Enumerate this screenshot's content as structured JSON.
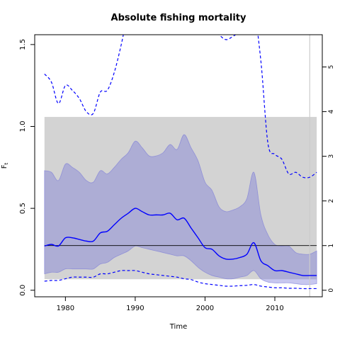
{
  "chart_data": {
    "type": "line",
    "title": "Absolute fishing mortality",
    "xlabel": "Time",
    "ylabel": "F",
    "ylabel_subscript": "t",
    "xlim": [
      1975.6,
      2016.8
    ],
    "ylim": [
      -0.04,
      1.56
    ],
    "x_ticks": [
      1980,
      1990,
      2000,
      2010
    ],
    "y_ticks": [
      0.0,
      0.5,
      1.0,
      1.5
    ],
    "y_tick_labels": [
      "0.0",
      "0.5",
      "1.0",
      "1.5"
    ],
    "y2_ticks": [
      0,
      1,
      2,
      3,
      4,
      5
    ],
    "y2_tick_labels": [
      "0",
      "1",
      "2",
      "3",
      "4",
      "5"
    ],
    "y2_scale": 0.2726,
    "grey_band": {
      "x_range": [
        1977,
        2016
      ],
      "y_range": [
        0.067,
        1.058
      ],
      "color": "#d3d3d3"
    },
    "reference_line_y": 0.2726,
    "vertical_line_x": 2015,
    "series": [
      {
        "role": "ci-band",
        "color": "#7a7ad8",
        "x": [
          1977,
          1978,
          1979,
          1980,
          1981,
          1982,
          1983,
          1984,
          1985,
          1986,
          1987,
          1988,
          1989,
          1990,
          1991,
          1992,
          1993,
          1994,
          1995,
          1996,
          1997,
          1998,
          1999,
          2000,
          2001,
          2002,
          2003,
          2004,
          2005,
          2006,
          2007,
          2008,
          2009,
          2010,
          2011,
          2012,
          2013,
          2014,
          2015,
          2016
        ],
        "upper": [
          0.73,
          0.72,
          0.67,
          0.77,
          0.75,
          0.72,
          0.67,
          0.66,
          0.73,
          0.71,
          0.75,
          0.8,
          0.84,
          0.91,
          0.87,
          0.82,
          0.82,
          0.84,
          0.89,
          0.86,
          0.95,
          0.87,
          0.79,
          0.66,
          0.61,
          0.51,
          0.48,
          0.49,
          0.51,
          0.56,
          0.72,
          0.46,
          0.34,
          0.28,
          0.27,
          0.27,
          0.23,
          0.22,
          0.22,
          0.24
        ],
        "lower": [
          0.1,
          0.11,
          0.11,
          0.13,
          0.13,
          0.13,
          0.13,
          0.13,
          0.16,
          0.17,
          0.2,
          0.22,
          0.24,
          0.27,
          0.26,
          0.25,
          0.24,
          0.23,
          0.22,
          0.21,
          0.21,
          0.18,
          0.14,
          0.11,
          0.09,
          0.08,
          0.07,
          0.07,
          0.08,
          0.09,
          0.12,
          0.07,
          0.05,
          0.045,
          0.045,
          0.045,
          0.04,
          0.035,
          0.035,
          0.04
        ]
      },
      {
        "role": "estimate",
        "color": "#0000ff",
        "x": [
          1977,
          1978,
          1979,
          1980,
          1981,
          1982,
          1983,
          1984,
          1985,
          1986,
          1987,
          1988,
          1989,
          1990,
          1991,
          1992,
          1993,
          1994,
          1995,
          1996,
          1997,
          1998,
          1999,
          2000,
          2001,
          2002,
          2003,
          2004,
          2005,
          2006,
          2007,
          2008,
          2009,
          2010,
          2011,
          2012,
          2013,
          2014,
          2015,
          2016
        ],
        "values": [
          0.27,
          0.28,
          0.27,
          0.32,
          0.32,
          0.31,
          0.3,
          0.3,
          0.35,
          0.36,
          0.4,
          0.44,
          0.47,
          0.5,
          0.48,
          0.46,
          0.46,
          0.46,
          0.47,
          0.43,
          0.44,
          0.38,
          0.32,
          0.26,
          0.25,
          0.21,
          0.19,
          0.19,
          0.2,
          0.22,
          0.29,
          0.18,
          0.15,
          0.12,
          0.12,
          0.11,
          0.1,
          0.09,
          0.09,
          0.09
        ]
      },
      {
        "role": "upper-dashed",
        "color": "#0000ff",
        "x": [
          1977,
          1978,
          1979,
          1980,
          1981,
          1982,
          1983,
          1984,
          1985,
          1986,
          1987,
          1988,
          1989,
          1990,
          1991,
          1992,
          1993,
          1994,
          1995,
          1996,
          1997,
          1998,
          1999,
          2000,
          2001,
          2002,
          2003,
          2004,
          2005,
          2006,
          2007,
          2008,
          2009,
          2010,
          2011,
          2012,
          2013,
          2014,
          2015,
          2016
        ],
        "values": [
          1.32,
          1.27,
          1.14,
          1.25,
          1.22,
          1.17,
          1.09,
          1.08,
          1.21,
          1.22,
          1.33,
          1.5,
          1.7,
          1.8,
          1.9,
          2.0,
          2.1,
          2.0,
          1.95,
          1.9,
          1.9,
          1.85,
          1.8,
          1.7,
          1.6,
          1.56,
          1.53,
          1.55,
          1.58,
          1.62,
          1.7,
          1.4,
          0.9,
          0.83,
          0.8,
          0.71,
          0.72,
          0.69,
          0.69,
          0.72
        ]
      },
      {
        "role": "lower-dashed",
        "color": "#0000ff",
        "x": [
          1977,
          1978,
          1979,
          1980,
          1981,
          1982,
          1983,
          1984,
          1985,
          1986,
          1987,
          1988,
          1989,
          1990,
          1991,
          1992,
          1993,
          1994,
          1995,
          1996,
          1997,
          1998,
          1999,
          2000,
          2001,
          2002,
          2003,
          2004,
          2005,
          2006,
          2007,
          2008,
          2009,
          2010,
          2011,
          2012,
          2013,
          2014,
          2015,
          2016
        ],
        "values": [
          0.055,
          0.06,
          0.06,
          0.07,
          0.08,
          0.08,
          0.08,
          0.08,
          0.1,
          0.1,
          0.11,
          0.12,
          0.12,
          0.12,
          0.11,
          0.1,
          0.095,
          0.09,
          0.085,
          0.08,
          0.07,
          0.065,
          0.05,
          0.04,
          0.035,
          0.03,
          0.025,
          0.025,
          0.028,
          0.03,
          0.035,
          0.025,
          0.02,
          0.015,
          0.015,
          0.012,
          0.012,
          0.01,
          0.01,
          0.01
        ]
      }
    ]
  }
}
